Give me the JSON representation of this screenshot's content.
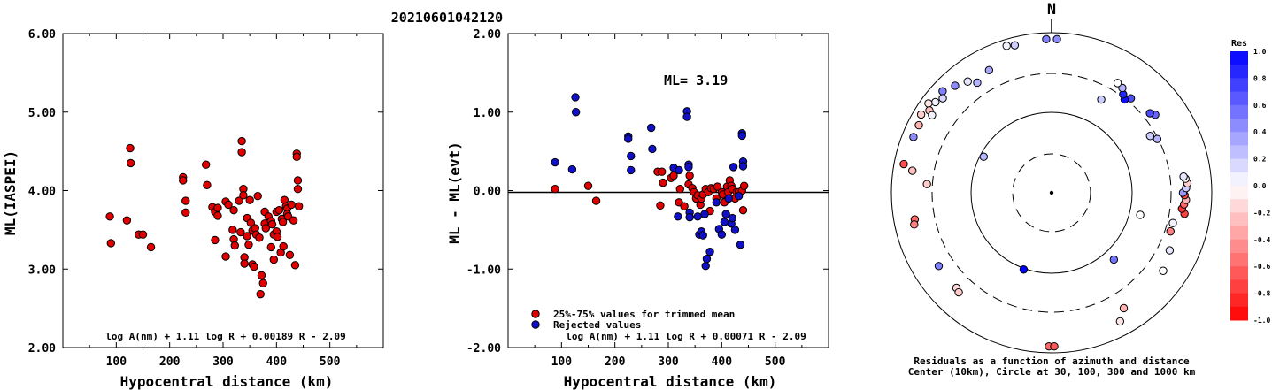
{
  "title": "20210601042120",
  "chart_data": [
    {
      "type": "scatter",
      "xlabel": "Hypocentral distance (km)",
      "ylabel": "ML(IASPEI)",
      "xlim": [
        0,
        600
      ],
      "ylim": [
        2.0,
        6.0
      ],
      "xticks": [
        "100",
        "200",
        "300",
        "400",
        "500"
      ],
      "yticks": [
        "2.00",
        "3.00",
        "4.00",
        "5.00",
        "6.00"
      ],
      "formula": "log A(nm) + 1.11 log R + 0.00189 R - 2.09",
      "series": [
        {
          "color": "#e00000",
          "x": [
            88,
            90,
            120,
            126,
            127,
            142,
            150,
            165,
            225,
            225,
            230,
            230,
            268,
            270,
            280,
            285,
            285,
            290,
            290,
            305,
            305,
            310,
            318,
            320,
            320,
            322,
            330,
            333,
            335,
            335,
            338,
            338,
            340,
            340,
            345,
            345,
            348,
            350,
            352,
            355,
            355,
            358,
            360,
            362,
            365,
            368,
            370,
            372,
            375,
            378,
            378,
            380,
            385,
            390,
            390,
            392,
            395,
            395,
            400,
            400,
            402,
            405,
            408,
            410,
            412,
            413,
            415,
            418,
            420,
            420,
            422,
            425,
            428,
            432,
            435,
            438,
            438,
            440,
            440,
            442
          ],
          "y": [
            3.67,
            3.33,
            3.62,
            4.54,
            4.35,
            3.44,
            3.44,
            3.28,
            4.17,
            4.13,
            3.87,
            3.72,
            4.33,
            4.07,
            3.79,
            3.73,
            3.37,
            3.78,
            3.68,
            3.86,
            3.16,
            3.82,
            3.5,
            3.75,
            3.38,
            3.3,
            3.87,
            3.47,
            4.63,
            4.49,
            4.02,
            3.94,
            3.15,
            3.07,
            3.65,
            3.42,
            3.31,
            3.88,
            3.59,
            3.49,
            3.06,
            3.03,
            3.52,
            3.44,
            3.93,
            3.4,
            2.68,
            2.92,
            2.82,
            3.73,
            3.58,
            3.52,
            3.67,
            3.61,
            3.28,
            3.57,
            3.44,
            3.12,
            3.73,
            3.48,
            3.41,
            3.75,
            3.21,
            3.64,
            3.6,
            3.29,
            3.88,
            3.8,
            3.77,
            3.7,
            3.67,
            3.18,
            3.82,
            3.62,
            3.05,
            4.47,
            4.43,
            4.13,
            4.02,
            3.8
          ]
        }
      ]
    },
    {
      "type": "scatter",
      "xlabel": "Hypocentral distance (km)",
      "ylabel": "ML - ML(evt)",
      "xlim": [
        0,
        600
      ],
      "ylim": [
        -2.0,
        2.0
      ],
      "xticks": [
        "100",
        "200",
        "300",
        "400",
        "500"
      ],
      "yticks": [
        "-2.00",
        "-1.00",
        "0.00",
        "1.00",
        "2.00"
      ],
      "annotation": "ML= 3.19",
      "formula": "log A(nm) + 1.11 log R + 0.00071 R - 2.09",
      "series": [
        {
          "name": "25%-75% values for trimmed mean",
          "color": "#e00000",
          "x": [
            88,
            150,
            165,
            280,
            285,
            288,
            290,
            305,
            310,
            320,
            322,
            330,
            338,
            340,
            345,
            348,
            352,
            355,
            360,
            362,
            365,
            370,
            375,
            378,
            380,
            385,
            390,
            392,
            400,
            402,
            405,
            410,
            412,
            415,
            418,
            420,
            425,
            428,
            432,
            438,
            440,
            442
          ],
          "y": [
            0.02,
            0.06,
            -0.13,
            0.24,
            -0.19,
            0.24,
            0.1,
            0.16,
            0.19,
            -0.15,
            0.02,
            -0.2,
            0.08,
            0.19,
            0.03,
            -0.02,
            -0.1,
            -0.06,
            -0.18,
            -0.1,
            -0.05,
            0.02,
            -0.02,
            -0.26,
            0.03,
            0.02,
            -0.1,
            0.05,
            -0.02,
            -0.05,
            -0.15,
            0.05,
            -0.02,
            0.13,
            0.06,
            0.02,
            -0.1,
            -0.02,
            -0.02,
            0.0,
            -0.25,
            0.06
          ]
        },
        {
          "name": "Rejected values",
          "color": "#1010c8",
          "x": [
            88,
            120,
            126,
            127,
            225,
            225,
            230,
            230,
            268,
            270,
            310,
            318,
            320,
            335,
            335,
            338,
            338,
            340,
            340,
            355,
            358,
            362,
            365,
            368,
            370,
            372,
            378,
            390,
            395,
            400,
            405,
            408,
            413,
            418,
            420,
            422,
            425,
            432,
            435,
            438,
            438,
            440,
            440
          ],
          "y": [
            0.36,
            0.27,
            1.19,
            1.0,
            0.69,
            0.66,
            0.44,
            0.26,
            0.8,
            0.53,
            0.29,
            -0.33,
            0.26,
            1.01,
            0.94,
            0.33,
            0.3,
            -0.28,
            -0.34,
            -0.33,
            -0.56,
            -0.52,
            -0.57,
            -0.3,
            -0.96,
            -0.87,
            -0.78,
            -0.15,
            -0.49,
            -0.56,
            -0.4,
            -0.3,
            -0.1,
            -0.42,
            -0.35,
            0.3,
            -0.5,
            -0.07,
            -0.69,
            0.73,
            0.7,
            0.37,
            0.31
          ]
        }
      ]
    }
  ],
  "polar": {
    "north_label": "N",
    "caption_line1": "Residuals as a function of azimuth and distance",
    "caption_line2": "Center (10km), Circle at 30, 100, 300 and 1000 km",
    "colorbar_title": "Res",
    "colorbar_ticks": [
      "1.0",
      "0.8",
      "0.6",
      "0.4",
      "0.2",
      "0.0",
      "-0.2",
      "-0.4",
      "-0.6",
      "-0.8",
      "-1.0"
    ],
    "points": [
      {
        "az": 2,
        "r": 0.96,
        "res": 0.45
      },
      {
        "az": 358,
        "r": 0.96,
        "res": 0.5
      },
      {
        "az": 346,
        "r": 0.95,
        "res": 0.2
      },
      {
        "az": 343,
        "r": 0.96,
        "res": 0.05
      },
      {
        "az": 333,
        "r": 0.86,
        "res": 0.35
      },
      {
        "az": 326,
        "r": 0.83,
        "res": 0.3
      },
      {
        "az": 323,
        "r": 0.87,
        "res": 0.1
      },
      {
        "az": 318,
        "r": 0.9,
        "res": 0.45
      },
      {
        "az": 313,
        "r": 0.93,
        "res": 0.5
      },
      {
        "az": 311,
        "r": 0.9,
        "res": 0.15
      },
      {
        "az": 308,
        "r": 0.92,
        "res": 0.05
      },
      {
        "az": 306,
        "r": 0.95,
        "res": -0.1
      },
      {
        "az": 304,
        "r": 0.92,
        "res": -0.25
      },
      {
        "az": 301,
        "r": 0.95,
        "res": -0.2
      },
      {
        "az": 303,
        "r": 0.89,
        "res": 0.05
      },
      {
        "az": 297,
        "r": 0.93,
        "res": -0.3
      },
      {
        "az": 292,
        "r": 0.93,
        "res": 0.45
      },
      {
        "az": 281,
        "r": 0.94,
        "res": -0.7
      },
      {
        "az": 279,
        "r": 0.88,
        "res": -0.25
      },
      {
        "az": 274,
        "r": 0.78,
        "res": -0.2
      },
      {
        "az": 298,
        "r": 0.48,
        "res": 0.3
      },
      {
        "az": 259,
        "r": 0.87,
        "res": -0.6
      },
      {
        "az": 257,
        "r": 0.88,
        "res": -0.5
      },
      {
        "az": 237,
        "r": 0.84,
        "res": 0.5
      },
      {
        "az": 225,
        "r": 0.84,
        "res": -0.15
      },
      {
        "az": 223,
        "r": 0.85,
        "res": -0.2
      },
      {
        "az": 200,
        "r": 0.51,
        "res": 1.0
      },
      {
        "az": 181,
        "r": 0.96,
        "res": -0.6
      },
      {
        "az": 179,
        "r": 0.96,
        "res": -0.65
      },
      {
        "az": 152,
        "r": 0.91,
        "res": -0.1
      },
      {
        "az": 148,
        "r": 0.85,
        "res": -0.3
      },
      {
        "az": 137,
        "r": 0.57,
        "res": 0.55
      },
      {
        "az": 125,
        "r": 0.85,
        "res": 0.0
      },
      {
        "az": 116,
        "r": 0.82,
        "res": 0.1
      },
      {
        "az": 108,
        "r": 0.78,
        "res": -0.5
      },
      {
        "az": 104,
        "r": 0.78,
        "res": 0.05
      },
      {
        "az": 99,
        "r": 0.84,
        "res": -0.75
      },
      {
        "az": 97,
        "r": 0.82,
        "res": -0.8
      },
      {
        "az": 95,
        "r": 0.83,
        "res": -0.6
      },
      {
        "az": 93,
        "r": 0.84,
        "res": -0.3
      },
      {
        "az": 91,
        "r": 0.83,
        "res": -0.7
      },
      {
        "az": 90,
        "r": 0.82,
        "res": 0.4
      },
      {
        "az": 88,
        "r": 0.84,
        "res": 0.2
      },
      {
        "az": 86,
        "r": 0.85,
        "res": -0.2
      },
      {
        "az": 84,
        "r": 0.84,
        "res": 0.0
      },
      {
        "az": 83,
        "r": 0.83,
        "res": 0.1
      },
      {
        "az": 104,
        "r": 0.57,
        "res": 0.0
      },
      {
        "az": 63,
        "r": 0.74,
        "res": 0.3
      },
      {
        "az": 60,
        "r": 0.71,
        "res": 0.2
      },
      {
        "az": 53,
        "r": 0.81,
        "res": 0.6
      },
      {
        "az": 51,
        "r": 0.79,
        "res": 0.7
      },
      {
        "az": 40,
        "r": 0.77,
        "res": 0.7
      },
      {
        "az": 38,
        "r": 0.74,
        "res": 0.95
      },
      {
        "az": 36,
        "r": 0.76,
        "res": 0.85
      },
      {
        "az": 34,
        "r": 0.79,
        "res": 0.3
      },
      {
        "az": 31,
        "r": 0.8,
        "res": 0.0
      },
      {
        "az": 28,
        "r": 0.66,
        "res": 0.2
      }
    ]
  }
}
